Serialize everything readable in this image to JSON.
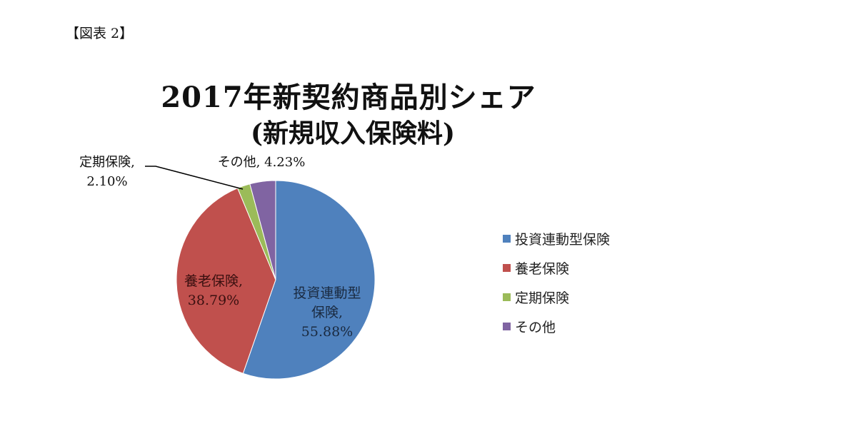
{
  "figure_label": "【図表 2】",
  "chart_data": {
    "type": "pie",
    "title": "2017年新契約商品別シェア",
    "subtitle": "(新規収入保険料)",
    "categories": [
      "投資連動型保険",
      "養老保険",
      "定期保険",
      "その他"
    ],
    "values": [
      55.88,
      38.79,
      2.1,
      4.23
    ],
    "unit": "%",
    "colors": [
      "#4F81BD",
      "#C0504D",
      "#9BBB59",
      "#8064A2"
    ],
    "data_labels": [
      {
        "lines": [
          "投資連動型",
          "保険,",
          "55.88%"
        ]
      },
      {
        "lines": [
          "養老保険,",
          "38.79%"
        ]
      },
      {
        "lines": [
          "定期保険,",
          "2.10%"
        ]
      },
      {
        "lines": [
          "その他, 4.23%"
        ]
      }
    ],
    "start_angle": "12 o'clock",
    "direction": "clockwise",
    "legend_position": "right"
  },
  "legend": {
    "items": [
      {
        "label": "投資連動型保険",
        "color": "#4F81BD"
      },
      {
        "label": "養老保険",
        "color": "#C0504D"
      },
      {
        "label": "定期保険",
        "color": "#9BBB59"
      },
      {
        "label": "その他",
        "color": "#8064A2"
      }
    ]
  }
}
